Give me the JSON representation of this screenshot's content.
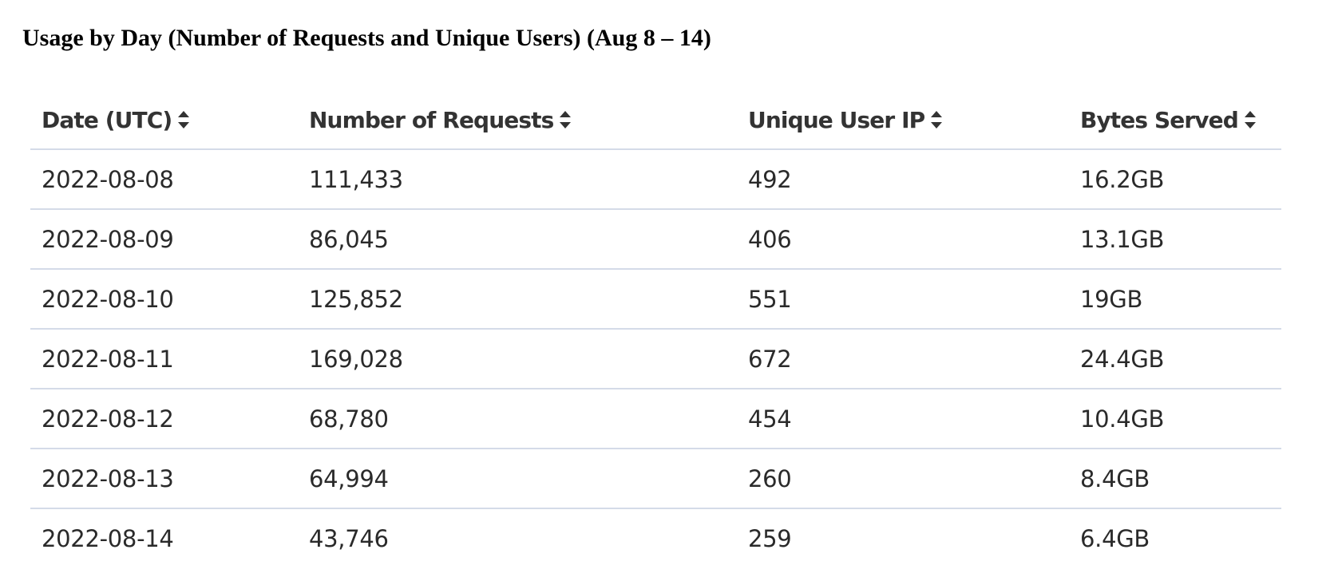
{
  "page": {
    "title": "Usage by Day (Number of Requests and Unique Users) (Aug 8 – 14)"
  },
  "colors": {
    "header_text": "#333333",
    "cell_text": "#2a2a2a",
    "row_divider": "#d4dbe8",
    "sort_icon": "#333333"
  },
  "table": {
    "columns": [
      {
        "label": "Date (UTC)",
        "icon": "sort-updown-icon"
      },
      {
        "label": "Number of Requests",
        "icon": "sort-updown-icon"
      },
      {
        "label": "Unique User IP",
        "icon": "sort-updown-icon"
      },
      {
        "label": "Bytes Served",
        "icon": "sort-updown-icon"
      }
    ],
    "rows": [
      [
        "2022-08-08",
        "111,433",
        "492",
        "16.2GB"
      ],
      [
        "2022-08-09",
        "86,045",
        "406",
        "13.1GB"
      ],
      [
        "2022-08-10",
        "125,852",
        "551",
        "19GB"
      ],
      [
        "2022-08-11",
        "169,028",
        "672",
        "24.4GB"
      ],
      [
        "2022-08-12",
        "68,780",
        "454",
        "10.4GB"
      ],
      [
        "2022-08-13",
        "64,994",
        "260",
        "8.4GB"
      ],
      [
        "2022-08-14",
        "43,746",
        "259",
        "6.4GB"
      ]
    ]
  }
}
